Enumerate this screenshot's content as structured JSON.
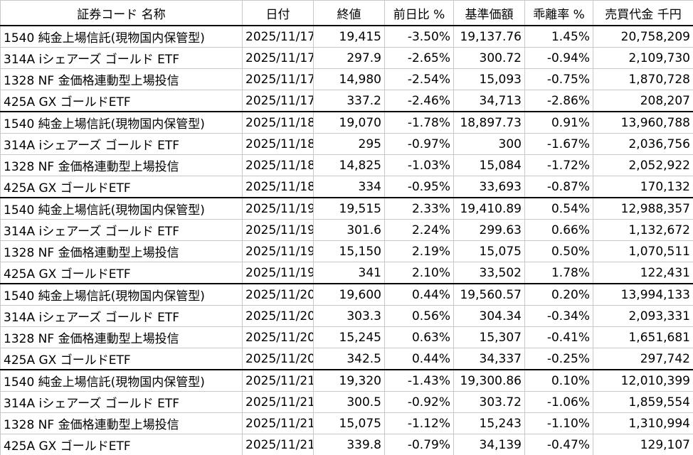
{
  "table": {
    "header": [
      "証券コード 名称",
      "日付",
      "終値",
      "前日比 %",
      "基準価額",
      "乖離率 %",
      "売買代金 千円"
    ],
    "rows": [
      [
        "1540 純金上場信託(現物国内保管型)",
        "2025/11/17",
        "19,415",
        "-3.50%",
        "19,137.76",
        "1.45%",
        "20,758,209"
      ],
      [
        "314A iシェアーズ ゴールド ETF",
        "2025/11/17",
        "297.9",
        "-2.65%",
        "300.72",
        "-0.94%",
        "2,109,730"
      ],
      [
        "1328 NF 金価格連動型上場投信",
        "2025/11/17",
        "14,980",
        "-2.54%",
        "15,093",
        "-0.75%",
        "1,870,728"
      ],
      [
        "425A GX ゴールドETF",
        "2025/11/17",
        "337.2",
        "-2.46%",
        "34,713",
        "-2.86%",
        "208,207"
      ],
      [
        "1540 純金上場信託(現物国内保管型)",
        "2025/11/18",
        "19,070",
        "-1.78%",
        "18,897.73",
        "0.91%",
        "13,960,788"
      ],
      [
        "314A iシェアーズ ゴールド ETF",
        "2025/11/18",
        "295",
        "-0.97%",
        "300",
        "-1.67%",
        "2,036,756"
      ],
      [
        "1328 NF 金価格連動型上場投信",
        "2025/11/18",
        "14,825",
        "-1.03%",
        "15,084",
        "-1.72%",
        "2,052,922"
      ],
      [
        "425A GX ゴールドETF",
        "2025/11/18",
        "334",
        "-0.95%",
        "33,693",
        "-0.87%",
        "170,132"
      ],
      [
        "1540 純金上場信託(現物国内保管型)",
        "2025/11/19",
        "19,515",
        "2.33%",
        "19,410.89",
        "0.54%",
        "12,988,357"
      ],
      [
        "314A iシェアーズ ゴールド ETF",
        "2025/11/19",
        "301.6",
        "2.24%",
        "299.63",
        "0.66%",
        "1,132,672"
      ],
      [
        "1328 NF 金価格連動型上場投信",
        "2025/11/19",
        "15,150",
        "2.19%",
        "15,075",
        "0.50%",
        "1,070,511"
      ],
      [
        "425A GX ゴールドETF",
        "2025/11/19",
        "341",
        "2.10%",
        "33,502",
        "1.78%",
        "122,431"
      ],
      [
        "1540 純金上場信託(現物国内保管型)",
        "2025/11/20",
        "19,600",
        "0.44%",
        "19,560.57",
        "0.20%",
        "13,994,133"
      ],
      [
        "314A iシェアーズ ゴールド ETF",
        "2025/11/20",
        "303.3",
        "0.56%",
        "304.34",
        "-0.34%",
        "2,093,331"
      ],
      [
        "1328 NF 金価格連動型上場投信",
        "2025/11/20",
        "15,245",
        "0.63%",
        "15,307",
        "-0.41%",
        "1,651,681"
      ],
      [
        "425A GX ゴールドETF",
        "2025/11/20",
        "342.5",
        "0.44%",
        "34,337",
        "-0.25%",
        "297,742"
      ],
      [
        "1540 純金上場信託(現物国内保管型)",
        "2025/11/21",
        "19,320",
        "-1.43%",
        "19,300.86",
        "0.10%",
        "12,010,399"
      ],
      [
        "314A iシェアーズ ゴールド ETF",
        "2025/11/21",
        "300.5",
        "-0.92%",
        "303.72",
        "-1.06%",
        "1,859,554"
      ],
      [
        "1328 NF 金価格連動型上場投信",
        "2025/11/21",
        "15,075",
        "-1.12%",
        "15,243",
        "-1.10%",
        "1,310,994"
      ],
      [
        "425A GX ゴールドETF",
        "2025/11/21",
        "339.8",
        "-0.79%",
        "34,139",
        "-0.47%",
        "129,107"
      ]
    ]
  }
}
